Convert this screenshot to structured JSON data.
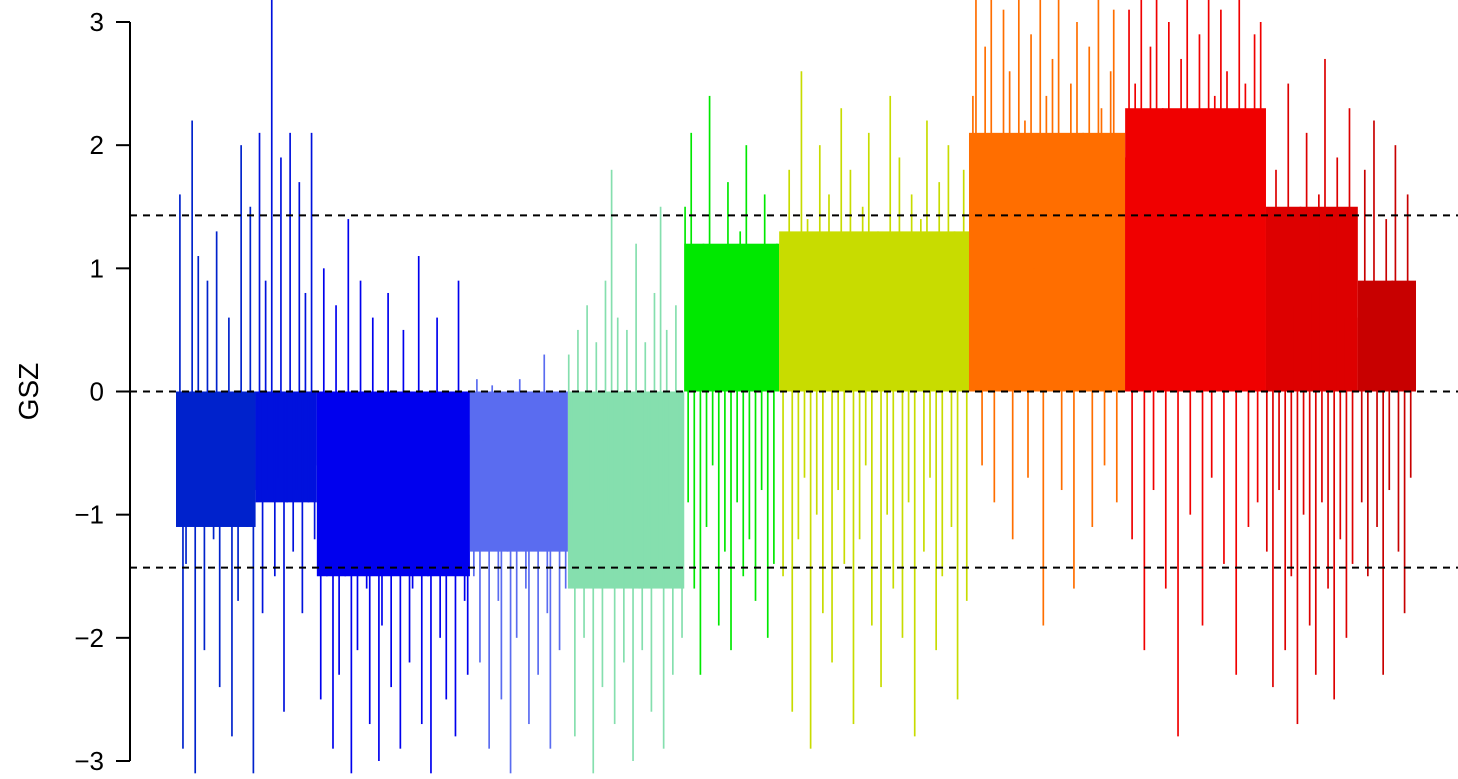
{
  "chart_data": {
    "type": "bar",
    "title": "",
    "xlabel": "",
    "ylabel": "GSZ",
    "ylim": [
      -3,
      3
    ],
    "y_ticks": [
      {
        "value": 3,
        "label": "3"
      },
      {
        "value": 2,
        "label": "2"
      },
      {
        "value": 1,
        "label": "1"
      },
      {
        "value": 0,
        "label": "0"
      },
      {
        "value": -1,
        "label": "−1"
      },
      {
        "value": -2,
        "label": "−2"
      },
      {
        "value": -3,
        "label": "−3"
      }
    ],
    "x_axis_shown": false,
    "grid": false,
    "legend": "none",
    "reference_lines": [
      {
        "value": 1.43,
        "style": "dashed",
        "color": "#000000"
      },
      {
        "value": 0,
        "style": "dashed",
        "color": "#000000"
      },
      {
        "value": -1.43,
        "style": "dashed",
        "color": "#000000"
      }
    ],
    "note_on_values": "Thin-bar GSZ profile; bars grouped into colored blocks. Values are per-bar estimates of the dominant bar heights, ordered left to right; bars are drawn from 0.",
    "series": [
      {
        "color": "#0022cc",
        "values": [
          -0.55,
          1.6,
          -2.9,
          -1.4,
          -0.6,
          2.2,
          -3.1,
          1.1,
          -0.6,
          -2.1,
          0.9,
          -0.6,
          -1.2,
          1.3,
          -2.4,
          -0.6,
          -0.9,
          0.6,
          -2.8,
          -0.6,
          -1.7,
          2.0,
          -0.6,
          -1.1,
          1.5,
          -3.1
        ]
      },
      {
        "color": "#0011dd",
        "values": [
          -0.8,
          2.1,
          -1.8,
          0.9,
          -0.8,
          3.2,
          -1.5,
          -0.7,
          1.9,
          -2.6,
          -0.9,
          2.1,
          -1.3,
          -0.8,
          1.7,
          -1.8,
          0.8,
          -0.9,
          2.1,
          -1.2
        ]
      },
      {
        "color": "#0000ee",
        "values": [
          -0.6,
          -2.5,
          1.0,
          -1.5,
          -0.6,
          -2.9,
          0.7,
          -2.3,
          -0.6,
          -1.5,
          1.4,
          -3.1,
          -0.6,
          -2.1,
          0.9,
          -0.6,
          -1.6,
          -2.7,
          0.6,
          -0.6,
          -3.0,
          -1.9,
          -0.6,
          0.8,
          -2.4,
          -0.6,
          -1.4,
          -2.9,
          0.5,
          -0.6,
          -2.2,
          -1.6,
          -0.6,
          1.1,
          -2.7,
          -0.6,
          -1.5,
          -3.1,
          -0.6,
          0.6,
          -2.0,
          -0.6,
          -2.5,
          -1.3,
          -0.6,
          -2.8,
          0.9,
          -0.6,
          -1.7,
          -2.3
        ]
      },
      {
        "color": "#5a6cf0",
        "values": [
          -0.35,
          -1.5,
          0.1,
          -2.2,
          -0.4,
          -1.1,
          -2.9,
          0.05,
          -0.4,
          -1.7,
          -2.5,
          -0.3,
          -1.3,
          -3.1,
          -0.45,
          -2.0,
          0.1,
          -0.4,
          -1.6,
          -2.7,
          -0.35,
          -1.0,
          -2.3,
          -0.4,
          0.3,
          -1.8,
          -2.9,
          -0.4,
          -1.2,
          -2.1,
          -0.4,
          -1.6
        ]
      },
      {
        "color": "#85dfae",
        "values": [
          0.3,
          -1.0,
          -2.8,
          0.5,
          -1.2,
          -2.0,
          0.7,
          -0.8,
          -3.1,
          0.4,
          -1.5,
          -2.4,
          0.9,
          -1.0,
          1.8,
          -2.7,
          0.6,
          -1.3,
          -2.2,
          0.5,
          -0.9,
          -3.0,
          1.2,
          -1.6,
          -2.1,
          0.4,
          -1.1,
          -2.6,
          0.8,
          -1.4,
          1.5,
          -2.9,
          0.5,
          -1.0,
          -2.3,
          0.7,
          -1.5,
          -2.0
        ]
      },
      {
        "color": "#00e800",
        "values": [
          1.5,
          -0.9,
          2.1,
          -1.6,
          0.6,
          -2.3,
          1.2,
          -1.1,
          2.4,
          -0.6,
          1.0,
          -1.9,
          0.8,
          -1.3,
          1.7,
          -2.1,
          0.7,
          -0.9,
          1.3,
          -1.5,
          2.0,
          -1.2,
          0.6,
          -1.7,
          1.1,
          -0.8,
          1.6,
          -2.0,
          0.9,
          -1.4,
          1.2
        ]
      },
      {
        "color": "#c8dc00",
        "values": [
          1.2,
          -1.5,
          0.6,
          1.8,
          -2.6,
          0.8,
          -1.2,
          2.6,
          -0.7,
          1.4,
          -2.9,
          0.9,
          -1.0,
          2.0,
          -1.8,
          0.7,
          1.6,
          -2.2,
          1.1,
          -0.8,
          2.3,
          -1.4,
          0.6,
          1.8,
          -2.7,
          1.0,
          -1.2,
          1.5,
          -0.6,
          2.1,
          -1.9,
          0.8,
          1.3,
          -2.4,
          0.9,
          -1.0,
          2.4,
          -1.6,
          0.7,
          1.9,
          -2.0,
          1.2,
          -0.9,
          1.6,
          -2.8,
          0.8,
          1.4,
          -1.3,
          2.2,
          -0.7,
          1.0,
          -2.1,
          1.7,
          -1.5,
          0.9,
          2.0,
          -1.1,
          1.3,
          -2.5,
          0.6,
          1.8,
          -1.7
        ]
      },
      {
        "color": "#ff6e00",
        "values": [
          0.8,
          2.4,
          3.2,
          1.6,
          -0.6,
          2.8,
          1.2,
          3.2,
          -0.9,
          2.0,
          1.5,
          3.1,
          0.7,
          2.6,
          -1.2,
          1.8,
          3.2,
          1.3,
          2.2,
          -0.7,
          2.9,
          1.0,
          1.9,
          3.2,
          -1.9,
          2.4,
          1.4,
          2.7,
          0.9,
          3.2,
          -0.8,
          2.0,
          1.6,
          2.5,
          -1.6,
          3.0,
          1.2,
          2.1,
          0.8,
          2.8,
          -1.1,
          1.7,
          3.2,
          2.3,
          -0.6,
          1.5,
          2.6,
          3.1,
          -0.9,
          1.1,
          2.0
        ]
      },
      {
        "color": "#f00000",
        "values": [
          1.9,
          3.1,
          -1.2,
          2.5,
          0.7,
          3.2,
          -2.1,
          1.5,
          2.8,
          -0.8,
          3.2,
          1.1,
          2.3,
          -1.6,
          3.0,
          0.9,
          2.0,
          -2.8,
          2.7,
          1.4,
          3.2,
          -1.0,
          2.2,
          0.6,
          2.9,
          -1.9,
          1.7,
          3.2,
          -0.7,
          2.4,
          1.0,
          3.1,
          -1.4,
          2.6,
          0.8,
          2.0,
          -2.3,
          3.2,
          1.3,
          2.5,
          -1.1,
          1.8,
          2.9,
          -0.9,
          3.0,
          1.2
        ]
      },
      {
        "color": "#dd0000",
        "values": [
          -1.3,
          0.9,
          -2.4,
          1.8,
          -0.8,
          1.2,
          -2.1,
          2.5,
          -1.5,
          0.7,
          -2.7,
          1.5,
          -1.0,
          2.1,
          -1.9,
          0.8,
          -2.3,
          1.6,
          -0.9,
          2.7,
          -1.6,
          1.0,
          -2.5,
          1.9,
          -1.2,
          0.6,
          -2.0,
          2.3,
          -1.4,
          1.1
        ]
      },
      {
        "color": "#c80000",
        "values": [
          0.6,
          -0.9,
          1.8,
          -1.5,
          0.7,
          2.2,
          -1.1,
          0.5,
          -2.3,
          1.4,
          -0.8,
          0.9,
          2.0,
          -1.3,
          0.6,
          -1.8,
          1.6,
          -0.7,
          0.8
        ]
      }
    ]
  }
}
